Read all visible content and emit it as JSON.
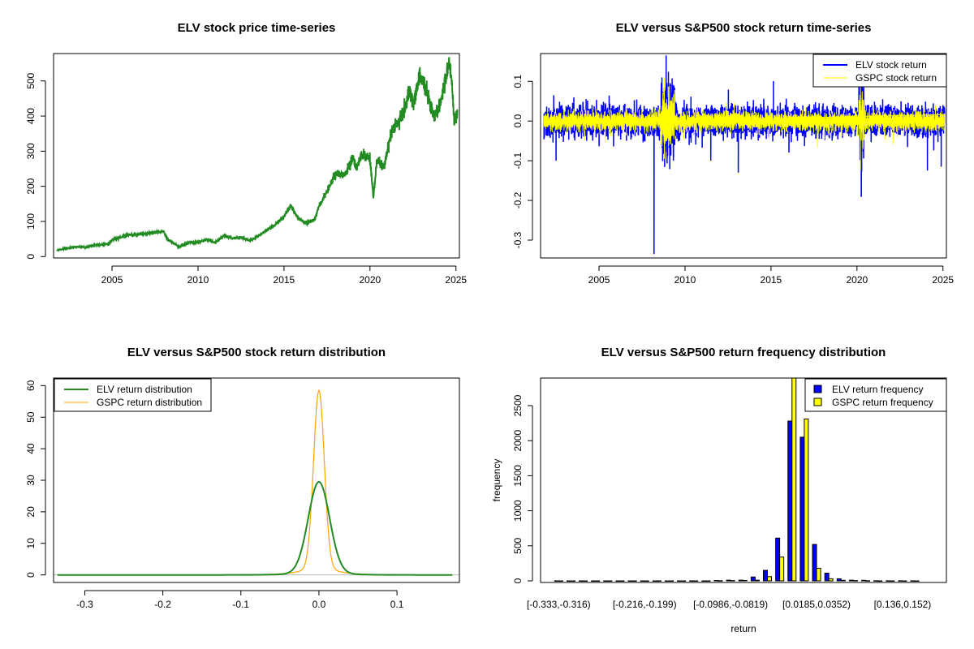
{
  "chart_data": [
    {
      "type": "line",
      "title": "ELV stock price time-series",
      "xlabel": "",
      "ylabel": "",
      "xlim": [
        2001.6,
        2025.2
      ],
      "ylim": [
        0,
        560
      ],
      "xticks": [
        2005,
        2010,
        2015,
        2020,
        2025
      ],
      "yticks": [
        0,
        100,
        200,
        300,
        400,
        500
      ],
      "series": [
        {
          "name": "ELV",
          "color": "#228B22",
          "x": [
            2001.8,
            2002.5,
            2003,
            2003.5,
            2004,
            2004.8,
            2005,
            2006,
            2007,
            2008,
            2008.2,
            2008.9,
            2009.5,
            2010,
            2010.5,
            2011,
            2011.5,
            2012,
            2012.5,
            2013,
            2013.5,
            2014,
            2014.5,
            2015,
            2015.4,
            2015.8,
            2016.3,
            2016.8,
            2017,
            2017.5,
            2018,
            2018.5,
            2019,
            2019.2,
            2019.5,
            2020,
            2020.2,
            2020.4,
            2020.8,
            2021,
            2021.3,
            2021.6,
            2022,
            2022.3,
            2022.5,
            2022.9,
            2023.3,
            2023.7,
            2024,
            2024.3,
            2024.6,
            2024.75,
            2024.9,
            2025.1
          ],
          "y": [
            18,
            25,
            28,
            26,
            33,
            35,
            48,
            62,
            65,
            72,
            50,
            28,
            40,
            40,
            48,
            40,
            60,
            52,
            55,
            45,
            58,
            75,
            90,
            115,
            145,
            110,
            95,
            105,
            140,
            185,
            235,
            230,
            280,
            250,
            290,
            280,
            165,
            275,
            255,
            300,
            360,
            380,
            420,
            470,
            430,
            520,
            470,
            400,
            420,
            480,
            555,
            500,
            380,
            410
          ]
        }
      ]
    },
    {
      "type": "line",
      "title": "ELV versus S&P500 stock return time-series",
      "xlim": [
        2001.6,
        2025.2
      ],
      "ylim": [
        -0.345,
        0.17
      ],
      "xticks": [
        2005,
        2010,
        2015,
        2020,
        2025
      ],
      "yticks": [
        -0.3,
        -0.2,
        -0.1,
        0.0,
        0.1
      ],
      "ytick_labels": [
        "-0.3",
        "-0.2",
        "-0.1",
        "0.0",
        "0.1"
      ],
      "legend": {
        "position": "top-right",
        "items": [
          "ELV stock return",
          "GSPC stock return"
        ]
      },
      "series": [
        {
          "name": "ELV stock return",
          "color": "#0000FF",
          "volatility": 0.018,
          "spikes": [
            [
              2008.2,
              -0.335
            ],
            [
              2008.9,
              0.165
            ],
            [
              2013.1,
              -0.13
            ],
            [
              2020.25,
              -0.19
            ],
            [
              2024.9,
              -0.115
            ],
            [
              2002.5,
              -0.1
            ],
            [
              2011.5,
              -0.1
            ],
            [
              2020.3,
              0.1
            ]
          ]
        },
        {
          "name": "GSPC stock return",
          "color": "#FFFF00",
          "volatility": 0.011,
          "spikes": [
            [
              2008.8,
              0.11
            ],
            [
              2008.8,
              -0.095
            ],
            [
              2020.2,
              -0.125
            ],
            [
              2020.2,
              0.09
            ]
          ]
        }
      ]
    },
    {
      "type": "line",
      "title": "ELV versus S&P500 stock return distribution",
      "xlim": [
        -0.34,
        0.18
      ],
      "ylim": [
        0,
        60
      ],
      "xticks": [
        -0.3,
        -0.2,
        -0.1,
        0.0,
        0.1
      ],
      "xtick_labels": [
        "-0.3",
        "-0.2",
        "-0.1",
        "0.0",
        "0.1"
      ],
      "yticks": [
        0,
        10,
        20,
        30,
        40,
        50,
        60
      ],
      "legend": {
        "position": "top-left",
        "items": [
          "ELV return distribution",
          "GSPC return distribution"
        ]
      },
      "series": [
        {
          "name": "ELV return distribution",
          "color": "#228B22",
          "peak": 29.5,
          "sd": 0.0135
        },
        {
          "name": "GSPC return distribution",
          "color": "#FFA500",
          "peak": 58.5,
          "sd": 0.0068
        }
      ]
    },
    {
      "type": "bar",
      "title": "ELV versus S&P500 return frequency distribution",
      "xlabel": "return",
      "ylabel": "frequency",
      "ylim": [
        0,
        2900
      ],
      "yticks": [
        0,
        500,
        1000,
        1500,
        2000,
        2500
      ],
      "tick_labels": [
        {
          "bin": 0,
          "label": "[-0.333,-0.316)"
        },
        {
          "bin": 7,
          "label": "[-0.216,-0.199)"
        },
        {
          "bin": 14,
          "label": "[-0.0986,-0.0819)"
        },
        {
          "bin": 21,
          "label": "[0.0185,0.0352)"
        },
        {
          "bin": 28,
          "label": "[0.136,0.152)"
        }
      ],
      "legend": {
        "position": "top-right",
        "items": [
          "ELV return frequency",
          "GSPC return frequency"
        ]
      },
      "series": [
        {
          "name": "ELV return frequency",
          "color": "#0000FF",
          "values": [
            1,
            0,
            0,
            0,
            0,
            0,
            0,
            0,
            0,
            0,
            0,
            0,
            0,
            5,
            10,
            10,
            55,
            150,
            610,
            2280,
            2050,
            520,
            110,
            30,
            10,
            8,
            2,
            1,
            1,
            1
          ]
        },
        {
          "name": "GSPC return frequency",
          "color": "#FFFF00",
          "values": [
            0,
            0,
            0,
            0,
            0,
            0,
            0,
            0,
            0,
            0,
            0,
            0,
            0,
            2,
            4,
            6,
            10,
            60,
            340,
            3000,
            2310,
            180,
            30,
            8,
            4,
            2,
            0,
            0,
            0,
            0
          ]
        }
      ]
    }
  ]
}
